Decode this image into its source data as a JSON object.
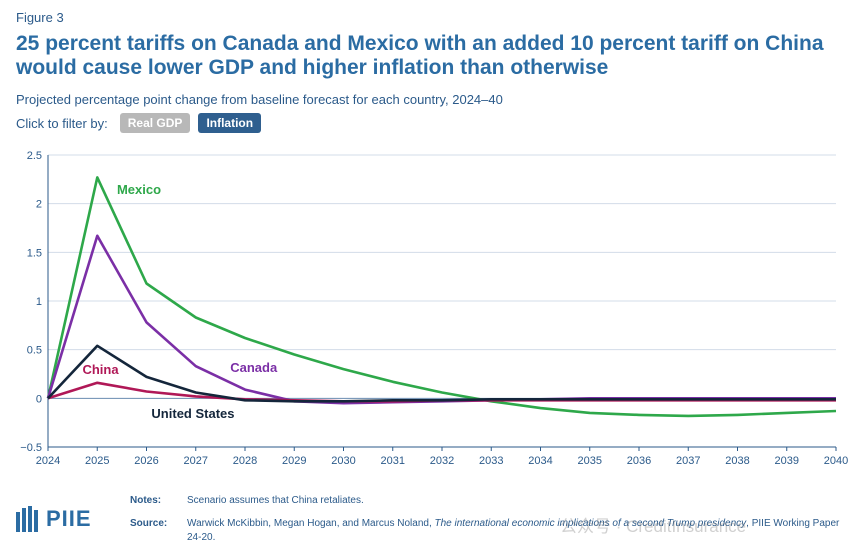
{
  "figure_label": "Figure 3",
  "title": "25 percent tariffs on Canada and Mexico with an added 10 percent tariff on China would cause lower GDP and higher inflation than otherwise",
  "subtitle": "Projected percentage point change from baseline forecast for each country, 2024–40",
  "filter": {
    "label": "Click to filter by:",
    "buttons": [
      "Real GDP",
      "Inflation"
    ],
    "active": "Inflation"
  },
  "colors": {
    "mexico": "#2ea84a",
    "canada": "#7b2fa6",
    "china": "#b01857",
    "united_states": "#14263b",
    "active_button": "#2f5f8f",
    "inactive_button": "#b8b8b8"
  },
  "chart_data": {
    "type": "line",
    "x": [
      2024,
      2025,
      2026,
      2027,
      2028,
      2029,
      2030,
      2031,
      2032,
      2033,
      2034,
      2035,
      2036,
      2037,
      2038,
      2039,
      2040
    ],
    "ylim": [
      -0.5,
      2.5
    ],
    "yticks": [
      -0.5,
      0,
      0.5,
      1,
      1.5,
      2,
      2.5
    ],
    "ytick_labels": [
      "−0.5",
      "0",
      "0.5",
      "1",
      "1.5",
      "2",
      "2.5"
    ],
    "xtick_labels": [
      "2024",
      "2025",
      "2026",
      "2027",
      "2028",
      "2029",
      "2030",
      "2031",
      "2032",
      "2033",
      "2034",
      "2035",
      "2036",
      "2037",
      "2038",
      "2039",
      "2040"
    ],
    "grid": true,
    "series": [
      {
        "name": "Mexico",
        "color": "#2ea84a",
        "values": [
          0.0,
          2.27,
          1.18,
          0.83,
          0.62,
          0.45,
          0.3,
          0.17,
          0.06,
          -0.03,
          -0.1,
          -0.15,
          -0.17,
          -0.18,
          -0.17,
          -0.15,
          -0.13
        ]
      },
      {
        "name": "Canada",
        "color": "#7b2fa6",
        "values": [
          0.0,
          1.67,
          0.78,
          0.33,
          0.09,
          -0.03,
          -0.05,
          -0.04,
          -0.03,
          -0.02,
          -0.01,
          0.0,
          0.0,
          0.0,
          0.0,
          0.0,
          0.0
        ]
      },
      {
        "name": "China",
        "color": "#b01857",
        "values": [
          0.0,
          0.16,
          0.07,
          0.02,
          -0.01,
          -0.02,
          -0.03,
          -0.03,
          -0.02,
          -0.02,
          -0.02,
          -0.02,
          -0.02,
          -0.02,
          -0.02,
          -0.02,
          -0.02
        ]
      },
      {
        "name": "United States",
        "color": "#14263b",
        "values": [
          0.0,
          0.54,
          0.22,
          0.06,
          -0.02,
          -0.03,
          -0.03,
          -0.02,
          -0.02,
          -0.01,
          -0.01,
          -0.01,
          -0.01,
          -0.01,
          -0.01,
          -0.01,
          -0.01
        ]
      }
    ],
    "annotations": [
      "Mexico",
      "Canada",
      "China",
      "United States"
    ]
  },
  "notes": {
    "notes_key": "Notes:",
    "notes_text": "Scenario assumes that China retaliates.",
    "source_key": "Source:",
    "source_text_1": "Warwick McKibbin, Megan Hogan, and Marcus Noland, ",
    "source_italic": "The international economic implications of a second Trump presidency",
    "source_text_2": ", PIIE Working Paper 24-20."
  },
  "logo_text": "PIIE",
  "watermark": "公众号 · CreditInsurance"
}
